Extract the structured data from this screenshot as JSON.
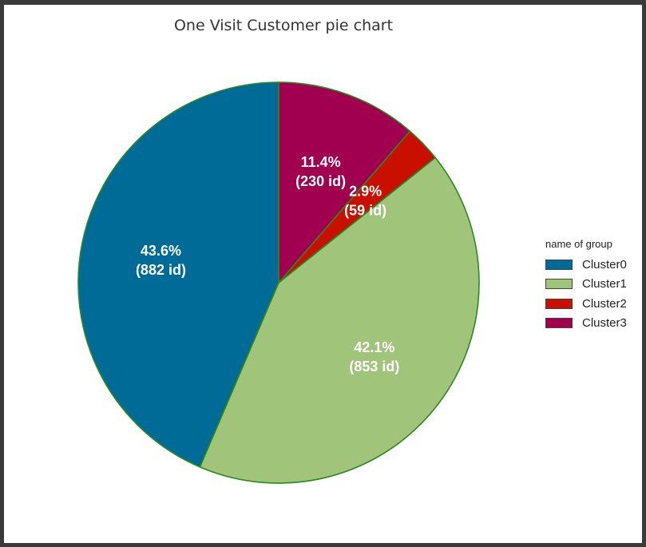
{
  "chart_data": {
    "type": "pie",
    "title": "One Visit Customer pie chart",
    "categories": [
      "Cluster0",
      "Cluster1",
      "Cluster2",
      "Cluster3"
    ],
    "values": [
      882,
      853,
      59,
      230
    ],
    "labels": [
      {
        "pct": "43.6%",
        "count": "(882 id)"
      },
      {
        "pct": "42.1%",
        "count": "(853 id)"
      },
      {
        "pct": "2.9%",
        "count": "(59 id)"
      },
      {
        "pct": "11.4%",
        "count": "(230 id)"
      }
    ],
    "colors": [
      "#006b96",
      "#a0c47a",
      "#c80f00",
      "#a0004f"
    ],
    "edge_color": "#2a8a1f",
    "start_angle_deg": 90,
    "direction": "counterclockwise",
    "legend": {
      "title": "name of group",
      "placement": "center-right"
    }
  }
}
